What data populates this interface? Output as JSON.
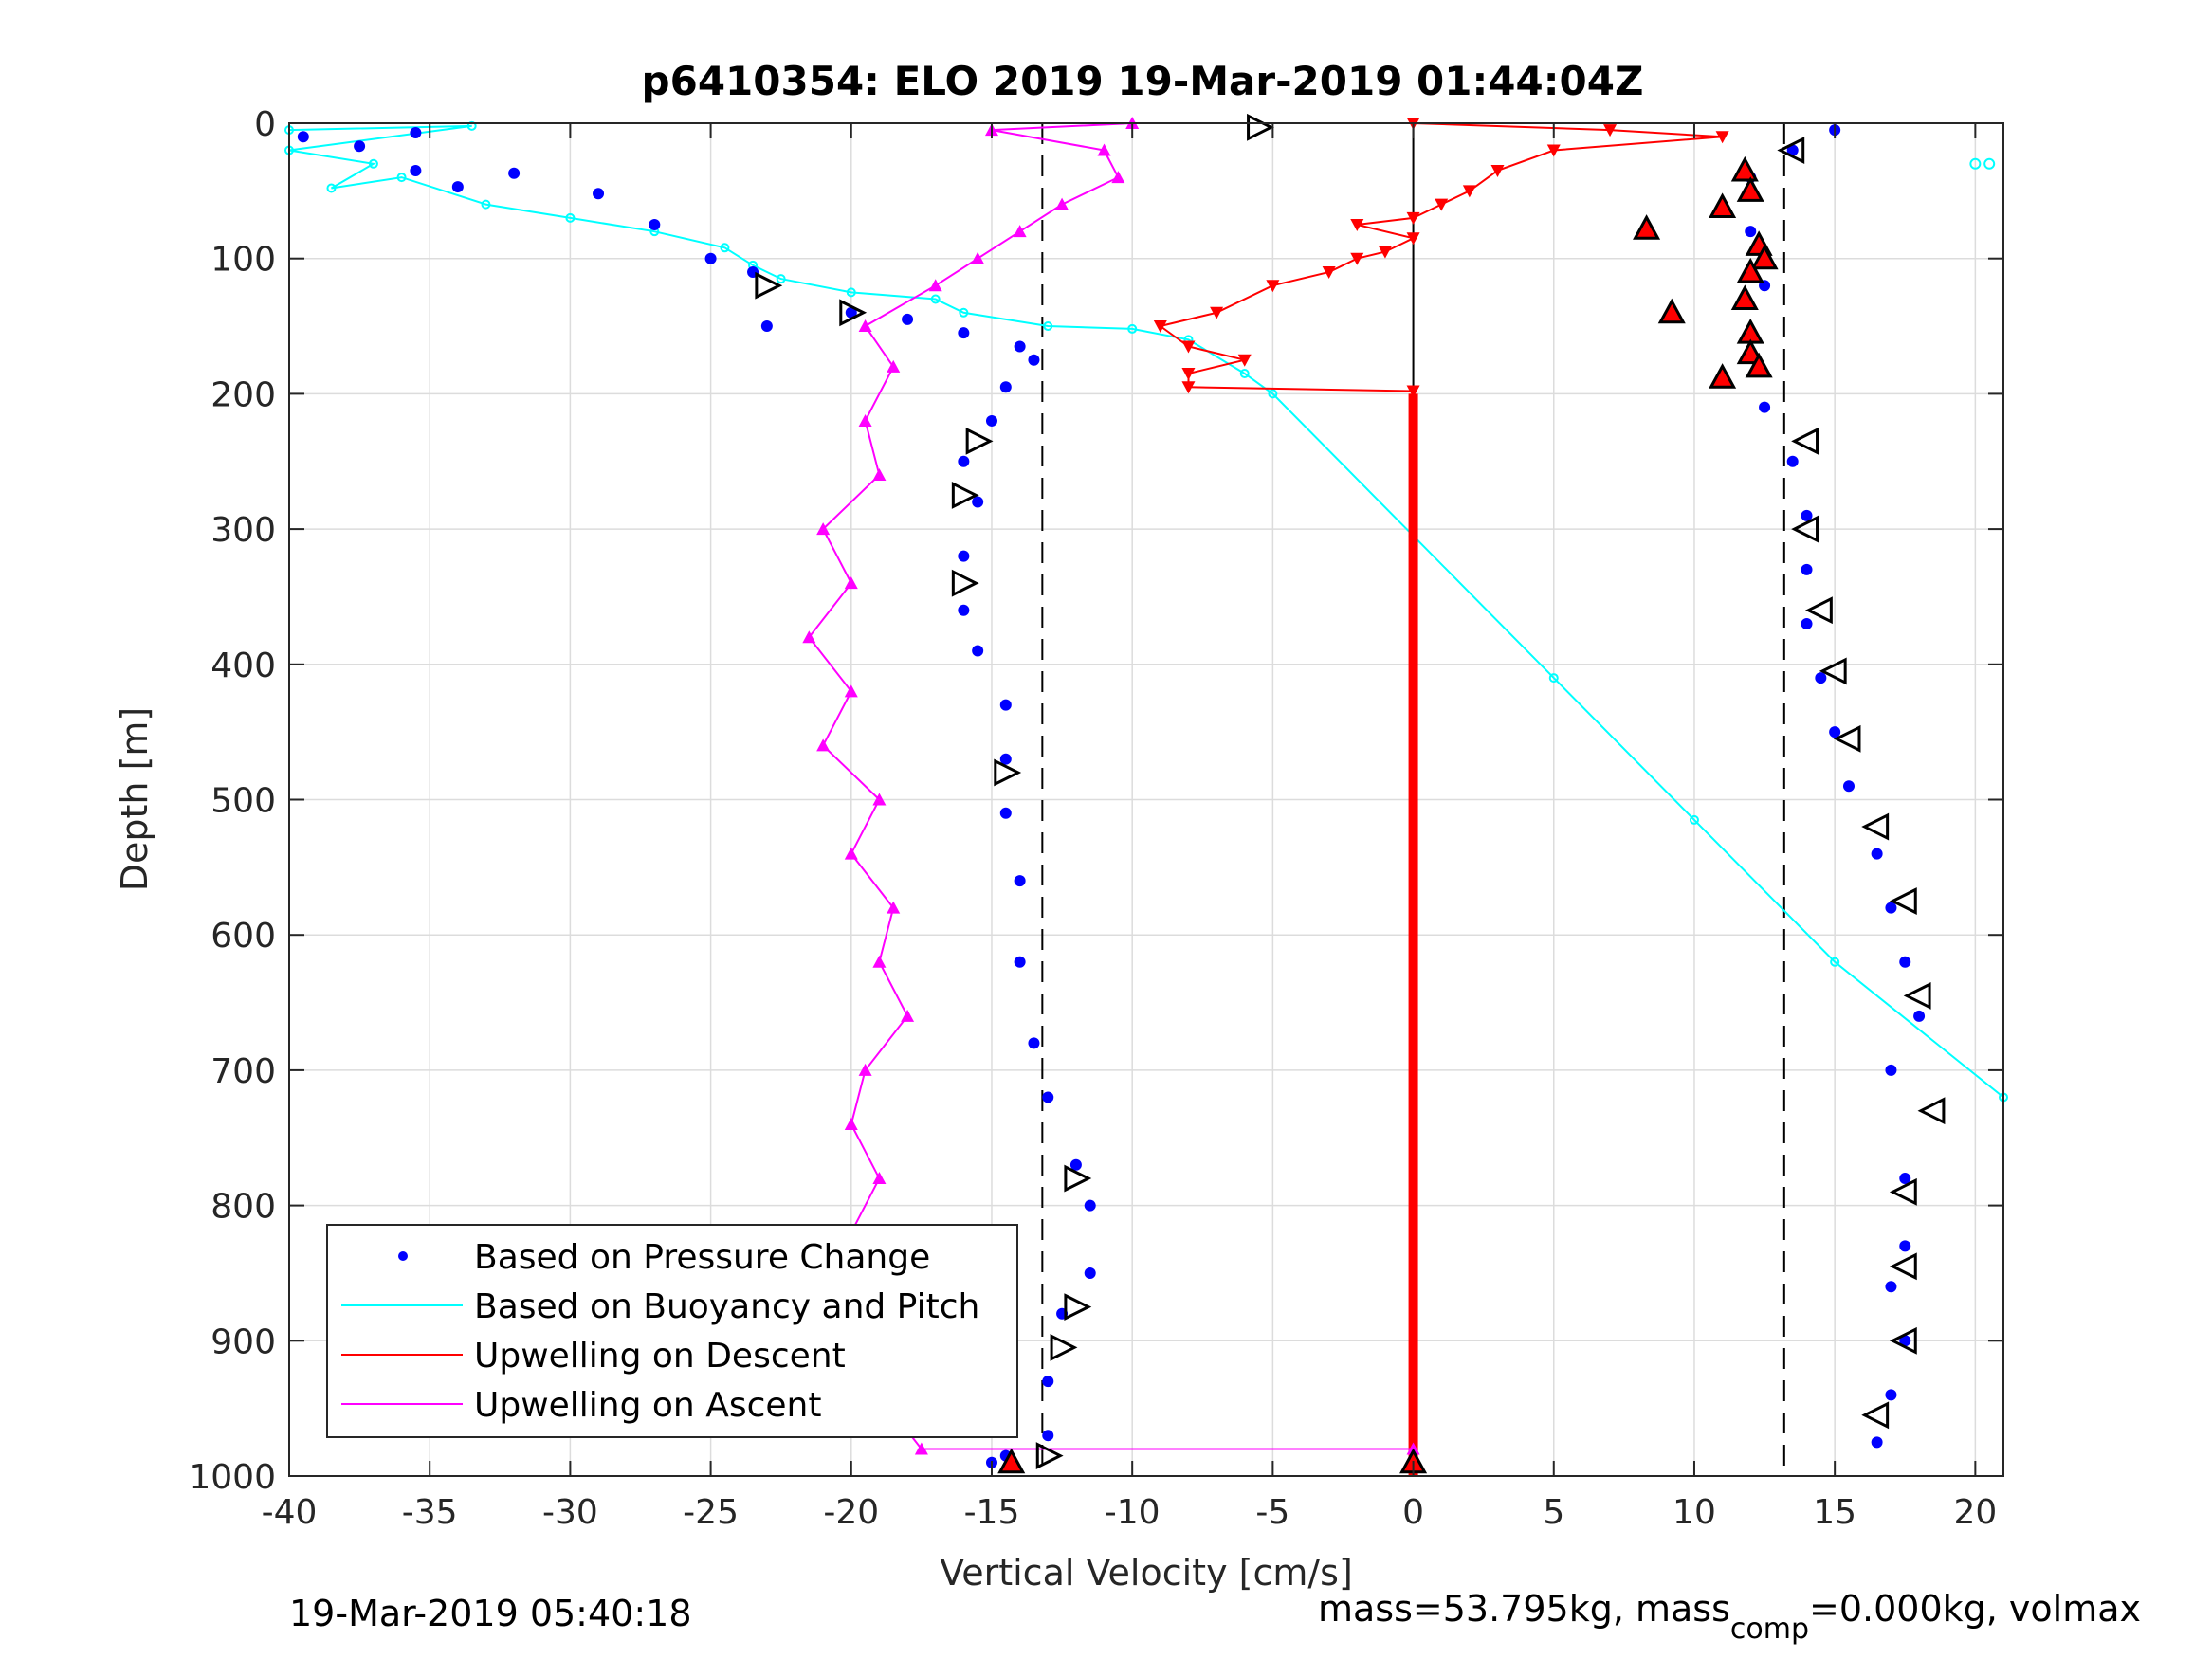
{
  "chart_data": {
    "type": "scatter",
    "title": "p6410354: ELO 2019 19-Mar-2019 01:44:04Z",
    "xlabel": "Vertical Velocity [cm/s]",
    "ylabel": "Depth [m]",
    "xlim": [
      -40,
      21
    ],
    "ylim": [
      0,
      1000
    ],
    "y_reversed": true,
    "grid": true,
    "x_ticks": [
      -40,
      -35,
      -30,
      -25,
      -20,
      -15,
      -10,
      -5,
      0,
      5,
      10,
      15,
      20
    ],
    "y_ticks": [
      0,
      100,
      200,
      300,
      400,
      500,
      600,
      700,
      800,
      900,
      1000
    ],
    "x_tick_labels": [
      "-40",
      "-35",
      "-30",
      "-25",
      "-20",
      "-15",
      "-10",
      "-5",
      "0",
      "5",
      "10",
      "15",
      "20"
    ],
    "y_tick_labels": [
      "0",
      "100",
      "200",
      "300",
      "400",
      "500",
      "600",
      "700",
      "800",
      "900",
      "1000"
    ],
    "reference_lines": [
      {
        "style": "dashed",
        "x": -13.2
      },
      {
        "style": "dashed",
        "x": 13.2
      },
      {
        "style": "solid",
        "x": 0
      }
    ],
    "legend": {
      "placement": "bottom-left",
      "entries": [
        "Based on Pressure Change",
        "Based on Buoyancy and Pitch",
        "Upwelling on Descent",
        "Upwelling on Ascent"
      ]
    },
    "series": [
      {
        "name": "Based on Pressure Change",
        "color": "#0000ff",
        "marker": "dot",
        "descent": [
          [
            -39.5,
            10
          ],
          [
            -37.5,
            17
          ],
          [
            -35.5,
            7
          ],
          [
            -35.5,
            35
          ],
          [
            -34,
            47
          ],
          [
            -32,
            37
          ],
          [
            -29,
            52
          ],
          [
            -27,
            75
          ],
          [
            -25,
            100
          ],
          [
            -23.5,
            110
          ],
          [
            -23,
            150
          ],
          [
            -20,
            140
          ],
          [
            -18,
            145
          ],
          [
            -16,
            155
          ],
          [
            -14,
            165
          ],
          [
            -13.5,
            175
          ],
          [
            -14.5,
            195
          ],
          [
            -15,
            220
          ],
          [
            -16,
            250
          ],
          [
            -15.5,
            280
          ],
          [
            -16,
            320
          ],
          [
            -16,
            360
          ],
          [
            -15.5,
            390
          ],
          [
            -14.5,
            430
          ],
          [
            -14.5,
            470
          ],
          [
            -14.5,
            510
          ],
          [
            -14,
            560
          ],
          [
            -14,
            620
          ],
          [
            -13.5,
            680
          ],
          [
            -13,
            720
          ],
          [
            -12,
            770
          ],
          [
            -11.5,
            800
          ],
          [
            -11.5,
            850
          ],
          [
            -12.5,
            880
          ],
          [
            -13,
            930
          ],
          [
            -13,
            970
          ],
          [
            -15,
            990
          ],
          [
            -14.5,
            985
          ]
        ],
        "ascent": [
          [
            17,
            700
          ],
          [
            18,
            660
          ],
          [
            17.5,
            620
          ],
          [
            17,
            580
          ],
          [
            16.5,
            540
          ],
          [
            15.5,
            490
          ],
          [
            15,
            450
          ],
          [
            14.5,
            410
          ],
          [
            14,
            370
          ],
          [
            14,
            330
          ],
          [
            14,
            290
          ],
          [
            13.5,
            250
          ],
          [
            12.5,
            210
          ],
          [
            12,
            170
          ],
          [
            12.5,
            120
          ],
          [
            12,
            80
          ],
          [
            12,
            40
          ],
          [
            13.5,
            20
          ],
          [
            15,
            5
          ],
          [
            17.5,
            780
          ],
          [
            17.5,
            830
          ],
          [
            17,
            860
          ],
          [
            17.5,
            900
          ],
          [
            17,
            940
          ],
          [
            16.5,
            975
          ]
        ]
      },
      {
        "name": "Based on Buoyancy and Pitch",
        "color": "#00ffff",
        "line": [
          [
            -40,
            5
          ],
          [
            -33.5,
            2
          ],
          [
            -40,
            20
          ],
          [
            -37,
            30
          ],
          [
            -38.5,
            48
          ],
          [
            -36,
            40
          ],
          [
            -33,
            60
          ],
          [
            -30,
            70
          ],
          [
            -27,
            80
          ],
          [
            -24.5,
            92
          ],
          [
            -23.5,
            105
          ],
          [
            -22.5,
            115
          ],
          [
            -20,
            125
          ],
          [
            -17,
            130
          ],
          [
            -16,
            140
          ],
          [
            -13,
            150
          ],
          [
            -10,
            152
          ],
          [
            -8,
            160
          ],
          [
            -6,
            185
          ],
          [
            -5,
            200
          ],
          [
            0,
            305
          ],
          [
            5,
            410
          ],
          [
            10,
            515
          ],
          [
            15,
            620
          ],
          [
            21,
            720
          ]
        ],
        "extra_points": [
          [
            20,
            30
          ],
          [
            20.5,
            30
          ]
        ]
      },
      {
        "name": "Upwelling on Descent",
        "color": "#ff0000",
        "marker": "triangle-down",
        "points": [
          [
            0,
            0
          ],
          [
            7,
            5
          ],
          [
            11,
            10
          ],
          [
            5,
            20
          ],
          [
            3,
            35
          ],
          [
            2,
            50
          ],
          [
            1,
            60
          ],
          [
            0,
            70
          ],
          [
            -2,
            75
          ],
          [
            0,
            85
          ],
          [
            -1,
            95
          ],
          [
            -2,
            100
          ],
          [
            -3,
            110
          ],
          [
            -5,
            120
          ],
          [
            -7,
            140
          ],
          [
            -9,
            150
          ],
          [
            -8,
            165
          ],
          [
            -6,
            175
          ],
          [
            -8,
            185
          ],
          [
            -8,
            195
          ],
          [
            0,
            198
          ]
        ],
        "zero_line_from": 200,
        "zero_line_to": 1000
      },
      {
        "name": "Upwelling on Ascent",
        "color": "#ff00ff",
        "marker": "triangle-up",
        "points": [
          [
            0,
            980
          ],
          [
            -17.5,
            980
          ],
          [
            -19,
            940
          ],
          [
            -21,
            900
          ],
          [
            -19,
            860
          ],
          [
            -20,
            820
          ],
          [
            -19,
            780
          ],
          [
            -20,
            740
          ],
          [
            -19.5,
            700
          ],
          [
            -18,
            660
          ],
          [
            -19,
            620
          ],
          [
            -18.5,
            580
          ],
          [
            -20,
            540
          ],
          [
            -19,
            500
          ],
          [
            -21,
            460
          ],
          [
            -20,
            420
          ],
          [
            -21.5,
            380
          ],
          [
            -20,
            340
          ],
          [
            -21,
            300
          ],
          [
            -19,
            260
          ],
          [
            -19.5,
            220
          ],
          [
            -18.5,
            180
          ],
          [
            -19.5,
            150
          ],
          [
            -17,
            120
          ],
          [
            -15.5,
            100
          ],
          [
            -14,
            80
          ],
          [
            -12.5,
            60
          ],
          [
            -10.5,
            40
          ],
          [
            -11,
            20
          ],
          [
            -15,
            5
          ],
          [
            -10,
            0
          ]
        ]
      }
    ],
    "open_triangle_markers": [
      [
        -5.5,
        3
      ],
      [
        -23,
        120
      ],
      [
        -20,
        140
      ],
      [
        -15.5,
        235
      ],
      [
        -16,
        275
      ],
      [
        -16,
        340
      ],
      [
        -14.5,
        480
      ],
      [
        -12,
        780
      ],
      [
        -12,
        875
      ],
      [
        -12.5,
        905
      ],
      [
        -13,
        985
      ],
      [
        13.5,
        20
      ],
      [
        14,
        235
      ],
      [
        14,
        300
      ],
      [
        14.5,
        360
      ],
      [
        15,
        405
      ],
      [
        15.5,
        455
      ],
      [
        16.5,
        520
      ],
      [
        17.5,
        575
      ],
      [
        18,
        645
      ],
      [
        18.5,
        730
      ],
      [
        17.5,
        790
      ],
      [
        17.5,
        845
      ],
      [
        17.5,
        900
      ],
      [
        16.5,
        955
      ]
    ],
    "filled_triangle_markers": [
      [
        11.8,
        35
      ],
      [
        12,
        50
      ],
      [
        11,
        62
      ],
      [
        8.3,
        78
      ],
      [
        12.3,
        90
      ],
      [
        12.5,
        100
      ],
      [
        12,
        110
      ],
      [
        11.8,
        130
      ],
      [
        9.2,
        140
      ],
      [
        12,
        155
      ],
      [
        12,
        170
      ],
      [
        12.3,
        180
      ],
      [
        11,
        188
      ],
      [
        0,
        990
      ],
      [
        -14.3,
        990
      ]
    ]
  },
  "footer": {
    "timestamp": "19-Mar-2019 05:40:18",
    "mass_text_1": "mass=53.795kg, mass",
    "mass_sub": "comp",
    "mass_text_2": "=0.000kg, volmax"
  }
}
